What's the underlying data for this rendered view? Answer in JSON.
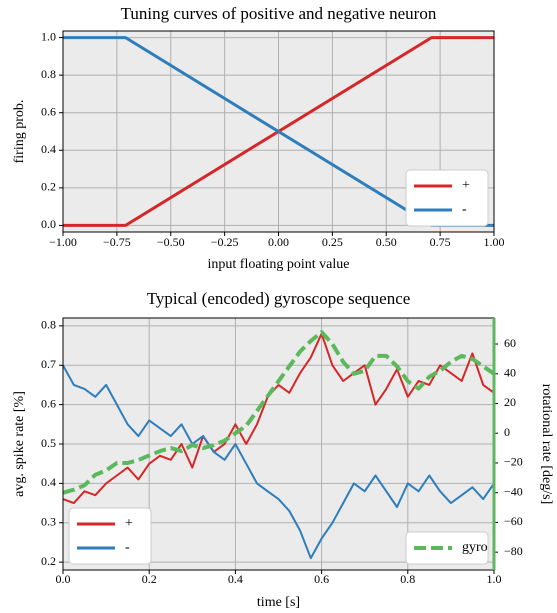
{
  "chart_data": [
    {
      "type": "line",
      "title": "Tuning curves of positive and negative neuron",
      "xlabel": "input floating point value",
      "ylabel": "firing prob.",
      "x": [
        -1,
        -0.71,
        0.71,
        1
      ],
      "series": [
        {
          "name": "+",
          "color": "#d62728",
          "values": [
            0,
            0,
            1,
            1
          ]
        },
        {
          "name": "-",
          "color": "#2e7ebc",
          "values": [
            1,
            1,
            0,
            0
          ]
        }
      ],
      "xlim": [
        -1,
        1
      ],
      "xticks": [
        {
          "value": -1,
          "label": "−1.00"
        },
        {
          "value": -0.75,
          "label": "−0.75"
        },
        {
          "value": -0.5,
          "label": "−0.50"
        },
        {
          "value": -0.25,
          "label": "−0.25"
        },
        {
          "value": 0,
          "label": "0.00"
        },
        {
          "value": 0.25,
          "label": "0.25"
        },
        {
          "value": 0.5,
          "label": "0.50"
        },
        {
          "value": 0.75,
          "label": "0.75"
        },
        {
          "value": 1,
          "label": "1.00"
        }
      ],
      "ylim": [
        -0.035,
        1.035
      ],
      "yticks": [
        {
          "value": 0,
          "label": "0.0"
        },
        0.2,
        0.4,
        0.6,
        0.8,
        {
          "value": 1,
          "label": "1.0"
        }
      ],
      "grid": true,
      "legend_loc": "lower right"
    },
    {
      "type": "line",
      "title": "Typical (encoded) gyroscope sequence",
      "xlabel": "time [s]",
      "ylabel": "avg. spike rate [%]",
      "y2label": "rotational rate [deg/s]",
      "x": [
        0,
        0.025,
        0.05,
        0.075,
        0.1,
        0.125,
        0.15,
        0.175,
        0.2,
        0.225,
        0.25,
        0.275,
        0.3,
        0.325,
        0.35,
        0.375,
        0.4,
        0.425,
        0.45,
        0.475,
        0.5,
        0.525,
        0.55,
        0.575,
        0.6,
        0.625,
        0.65,
        0.675,
        0.7,
        0.725,
        0.75,
        0.775,
        0.8,
        0.825,
        0.85,
        0.875,
        0.9,
        0.925,
        0.95,
        0.975,
        1
      ],
      "series": [
        {
          "name": "+",
          "color": "#d62728",
          "values": [
            0.36,
            0.35,
            0.38,
            0.37,
            0.4,
            0.42,
            0.44,
            0.41,
            0.45,
            0.47,
            0.46,
            0.5,
            0.44,
            0.52,
            0.48,
            0.5,
            0.55,
            0.5,
            0.55,
            0.62,
            0.65,
            0.63,
            0.68,
            0.72,
            0.78,
            0.7,
            0.66,
            0.68,
            0.7,
            0.6,
            0.64,
            0.69,
            0.62,
            0.66,
            0.65,
            0.7,
            0.68,
            0.66,
            0.73,
            0.65,
            0.63
          ]
        },
        {
          "name": "-",
          "color": "#2e7ebc",
          "values": [
            0.7,
            0.65,
            0.64,
            0.62,
            0.65,
            0.6,
            0.55,
            0.52,
            0.56,
            0.54,
            0.52,
            0.55,
            0.5,
            0.52,
            0.48,
            0.46,
            0.5,
            0.45,
            0.4,
            0.38,
            0.36,
            0.33,
            0.28,
            0.21,
            0.26,
            0.3,
            0.35,
            0.4,
            0.38,
            0.42,
            0.38,
            0.34,
            0.4,
            0.38,
            0.42,
            0.38,
            0.35,
            0.37,
            0.39,
            0.36,
            0.4
          ]
        },
        {
          "name": "gyro",
          "color": "#5cb85c",
          "axis": "y2",
          "linestyle": "dashed",
          "values": [
            -40,
            -38,
            -35,
            -28,
            -25,
            -20,
            -20,
            -18,
            -15,
            -12,
            -10,
            -12,
            -8,
            -10,
            -8,
            -5,
            0,
            5,
            15,
            25,
            35,
            45,
            55,
            62,
            68,
            60,
            48,
            40,
            42,
            52,
            52,
            45,
            35,
            30,
            38,
            42,
            48,
            52,
            50,
            45,
            40
          ]
        }
      ],
      "xlim": [
        0,
        1
      ],
      "xticks": [
        {
          "value": 0,
          "label": "0.0"
        },
        0.2,
        0.4,
        0.6,
        0.8,
        {
          "value": 1,
          "label": "1.0"
        }
      ],
      "ylim": [
        0.18,
        0.82
      ],
      "yticks": [
        0.2,
        0.3,
        0.4,
        0.5,
        0.6,
        0.7,
        0.8
      ],
      "y2lim": [
        -92,
        77.5
      ],
      "y2ticks": [
        {
          "value": -80,
          "label": "−80"
        },
        {
          "value": -60,
          "label": "−60"
        },
        {
          "value": -40,
          "label": "−40"
        },
        {
          "value": -20,
          "label": "−20"
        },
        0,
        20,
        40,
        60
      ],
      "y2color": "#5cb85c",
      "grid": true,
      "legend_loc": "lower left",
      "y2_legend_loc": "lower right"
    }
  ]
}
